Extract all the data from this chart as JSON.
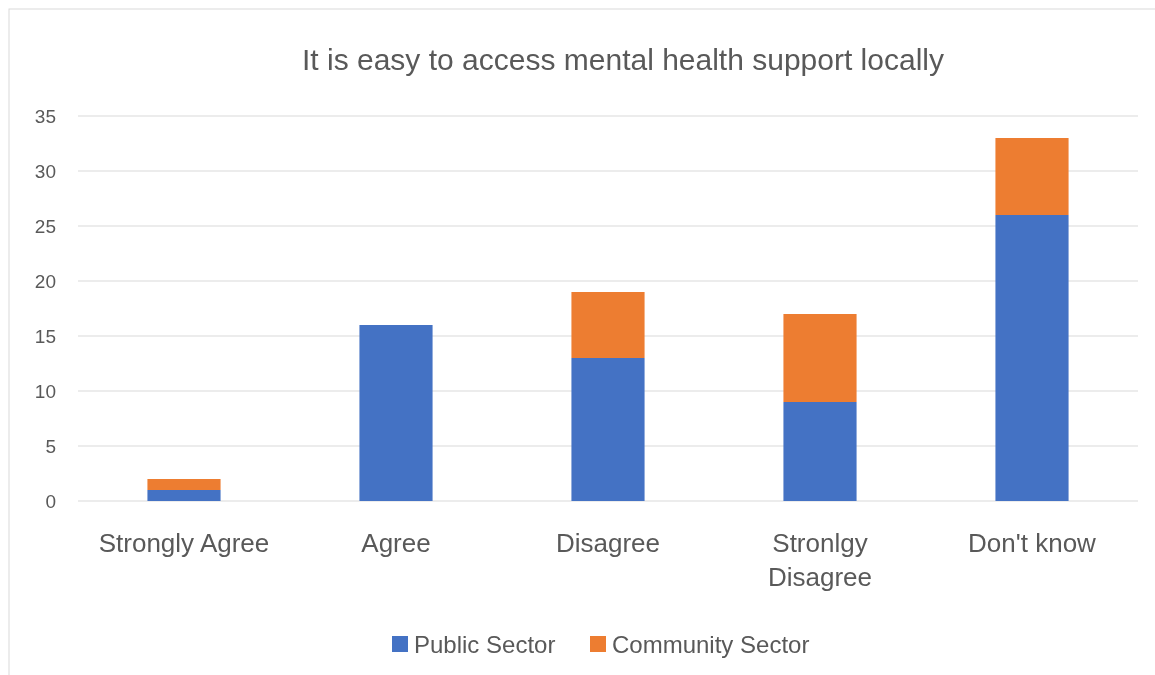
{
  "chart_data": {
    "type": "bar",
    "title": "It is easy to access mental health support locally",
    "categories": [
      "Strongly Agree",
      "Agree",
      "Disagree",
      "Stronlgy Disagree",
      "Don't know"
    ],
    "stacked": true,
    "series": [
      {
        "name": "Public Sector",
        "color": "#4472c4",
        "values": [
          1,
          16,
          13,
          9,
          26
        ]
      },
      {
        "name": "Community Sector",
        "color": "#ed7d31",
        "values": [
          1,
          0,
          6,
          8,
          7
        ]
      }
    ],
    "ylim": [
      0,
      35
    ],
    "yticks": [
      0,
      5,
      10,
      15,
      20,
      25,
      30,
      35
    ],
    "grid": "y",
    "legend": "bottom"
  }
}
